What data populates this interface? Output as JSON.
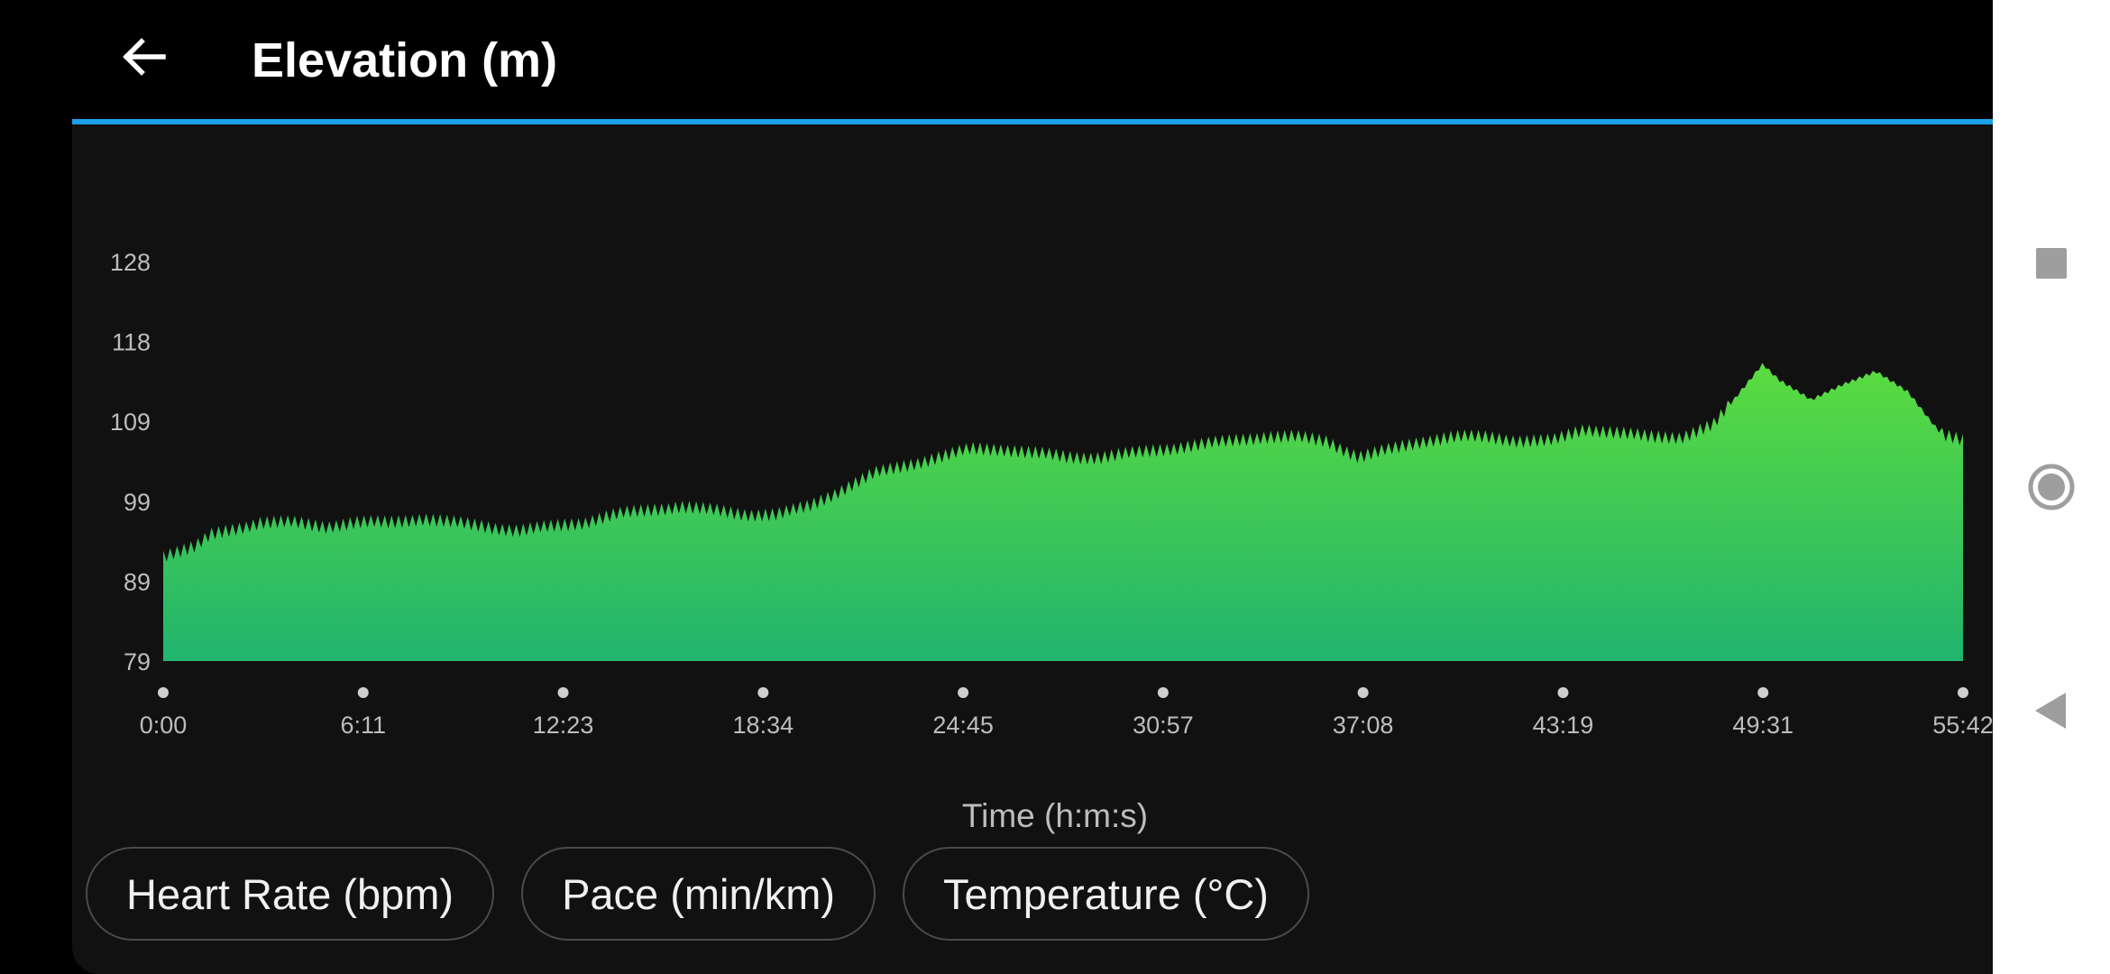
{
  "header": {
    "title": "Elevation (m)",
    "back_icon": "arrow-left-icon"
  },
  "chips": [
    {
      "label": "Heart Rate (bpm)"
    },
    {
      "label": "Pace (min/km)"
    },
    {
      "label": "Temperature (°C)"
    }
  ],
  "navbar": {
    "icons": [
      "recents-square-icon",
      "home-circle-icon",
      "back-triangle-icon"
    ]
  },
  "colors": {
    "accent_line": "#1aa0e8",
    "area_top": "#5bdc3f",
    "area_bottom": "#21b46e",
    "background": "#111111"
  },
  "chart_data": {
    "type": "area",
    "title": "Elevation (m)",
    "xlabel": "Time (h:m:s)",
    "ylabel": "",
    "y_ticks": [
      "128",
      "118",
      "109",
      "99",
      "89",
      "79"
    ],
    "x_ticks": [
      "0:00",
      "6:11",
      "12:23",
      "18:34",
      "24:45",
      "30:57",
      "37:08",
      "43:19",
      "49:31",
      "55:42"
    ],
    "ylim": [
      79,
      128
    ],
    "xlim_minutes": [
      0,
      55.7
    ],
    "grid": false,
    "legend": "none",
    "series": [
      {
        "x_minutes": [
          0,
          1,
          1.5,
          2,
          3,
          4,
          5,
          6,
          7,
          8,
          9,
          10,
          11,
          12,
          13,
          14,
          15,
          16,
          17,
          18,
          19,
          20,
          21,
          22,
          23,
          24,
          25,
          26,
          27,
          28,
          29,
          30,
          31,
          32,
          33,
          34,
          35,
          36,
          37,
          38,
          39,
          40,
          41,
          42,
          43,
          44,
          45,
          46,
          47,
          48,
          49,
          49.5,
          50,
          51,
          52,
          53,
          54,
          55,
          55.7
        ],
        "values": [
          92,
          93,
          94.5,
          95,
          96,
          96,
          95.5,
          96,
          96,
          96.5,
          96,
          95.5,
          95,
          95.5,
          96,
          97,
          97.5,
          98,
          97.5,
          97,
          97,
          98,
          100,
          102,
          103,
          104,
          105,
          105,
          104.5,
          104,
          104,
          104.5,
          105,
          105.5,
          106,
          106.5,
          106.5,
          106,
          104,
          105,
          106,
          106.5,
          106.5,
          106,
          106,
          107.5,
          107,
          106.5,
          106.5,
          108,
          113,
          115.5,
          113.5,
          111,
          113,
          114.5,
          112,
          107,
          106
        ]
      }
    ]
  }
}
